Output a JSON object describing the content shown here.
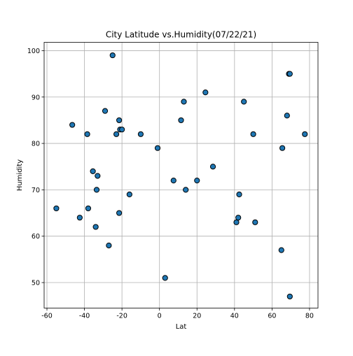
{
  "chart_data": {
    "type": "scatter",
    "title": "City Latitude vs.Humidity(07/22/21)",
    "xlabel": "Lat",
    "ylabel": "Humidity",
    "xlim": [
      -61.5,
      84.5
    ],
    "ylim": [
      44.5,
      101.8
    ],
    "x_ticks": [
      -60,
      -40,
      -20,
      0,
      20,
      40,
      60,
      80
    ],
    "y_ticks": [
      50,
      60,
      70,
      80,
      90,
      100
    ],
    "grid": true,
    "point_color": "#1f77b4",
    "edge_color": "#000000",
    "points": [
      {
        "x": -55,
        "y": 66
      },
      {
        "x": -46.5,
        "y": 84
      },
      {
        "x": -42.5,
        "y": 64
      },
      {
        "x": -38.5,
        "y": 82
      },
      {
        "x": -38,
        "y": 66
      },
      {
        "x": -35.5,
        "y": 74
      },
      {
        "x": -34,
        "y": 62
      },
      {
        "x": -33.5,
        "y": 70
      },
      {
        "x": -33,
        "y": 73
      },
      {
        "x": -29,
        "y": 87
      },
      {
        "x": -27,
        "y": 58
      },
      {
        "x": -25,
        "y": 99
      },
      {
        "x": -23,
        "y": 82
      },
      {
        "x": -21.5,
        "y": 85
      },
      {
        "x": -21.5,
        "y": 65
      },
      {
        "x": -21,
        "y": 83
      },
      {
        "x": -20,
        "y": 83
      },
      {
        "x": -16,
        "y": 69
      },
      {
        "x": -10,
        "y": 82
      },
      {
        "x": -1,
        "y": 79
      },
      {
        "x": 3,
        "y": 51
      },
      {
        "x": 7.5,
        "y": 72
      },
      {
        "x": 11.5,
        "y": 85
      },
      {
        "x": 13,
        "y": 89
      },
      {
        "x": 14,
        "y": 70
      },
      {
        "x": 20,
        "y": 72
      },
      {
        "x": 24.5,
        "y": 91
      },
      {
        "x": 28.5,
        "y": 75
      },
      {
        "x": 41,
        "y": 63
      },
      {
        "x": 42,
        "y": 64
      },
      {
        "x": 42.5,
        "y": 69
      },
      {
        "x": 45,
        "y": 89
      },
      {
        "x": 50,
        "y": 82
      },
      {
        "x": 51,
        "y": 63
      },
      {
        "x": 65,
        "y": 57
      },
      {
        "x": 65.5,
        "y": 79
      },
      {
        "x": 68,
        "y": 86
      },
      {
        "x": 69,
        "y": 95
      },
      {
        "x": 69.5,
        "y": 95
      },
      {
        "x": 69.5,
        "y": 47
      },
      {
        "x": 77.5,
        "y": 82
      }
    ]
  }
}
